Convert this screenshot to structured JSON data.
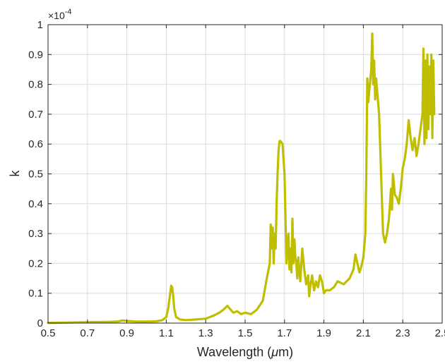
{
  "chart_data": {
    "type": "line",
    "title": "",
    "xlabel_prefix": "Wavelength (",
    "xlabel_unit": "μ",
    "xlabel_suffix": "m)",
    "ylabel": "k",
    "y_multiplier_base": "×10",
    "y_multiplier_exp": "-4",
    "xlim": [
      0.5,
      2.5
    ],
    "ylim": [
      0,
      1
    ],
    "xticks": [
      "0.5",
      "0.7",
      "0.9",
      "1.1",
      "1.3",
      "1.5",
      "1.7",
      "1.9",
      "2.1",
      "2.3",
      "2.5"
    ],
    "yticks": [
      "0",
      "0.1",
      "0.2",
      "0.3",
      "0.4",
      "0.5",
      "0.6",
      "0.7",
      "0.8",
      "0.9",
      "1"
    ],
    "grid": true,
    "line_color": "#bfbf00",
    "series": [
      {
        "x": [
          0.5,
          0.6,
          0.7,
          0.8,
          0.85,
          0.88,
          0.9,
          0.95,
          1.0,
          1.05,
          1.08,
          1.1,
          1.11,
          1.12,
          1.125,
          1.13,
          1.135,
          1.14,
          1.15,
          1.17,
          1.2,
          1.25,
          1.3,
          1.34,
          1.37,
          1.39,
          1.41,
          1.42,
          1.44,
          1.46,
          1.48,
          1.5,
          1.53,
          1.56,
          1.59,
          1.61,
          1.625,
          1.63,
          1.635,
          1.64,
          1.645,
          1.65,
          1.655,
          1.66,
          1.665,
          1.67,
          1.675,
          1.68,
          1.69,
          1.7,
          1.71,
          1.72,
          1.725,
          1.73,
          1.735,
          1.74,
          1.745,
          1.75,
          1.755,
          1.76,
          1.765,
          1.77,
          1.78,
          1.79,
          1.8,
          1.81,
          1.82,
          1.825,
          1.83,
          1.84,
          1.85,
          1.86,
          1.87,
          1.88,
          1.89,
          1.9,
          1.91,
          1.93,
          1.95,
          1.97,
          2.0,
          2.03,
          2.05,
          2.06,
          2.07,
          2.08,
          2.09,
          2.1,
          2.11,
          2.115,
          2.12,
          2.125,
          2.13,
          2.14,
          2.145,
          2.15,
          2.155,
          2.16,
          2.165,
          2.17,
          2.18,
          2.19,
          2.2,
          2.21,
          2.22,
          2.23,
          2.24,
          2.245,
          2.25,
          2.26,
          2.27,
          2.28,
          2.29,
          2.3,
          2.31,
          2.32,
          2.33,
          2.34,
          2.35,
          2.36,
          2.37,
          2.38,
          2.39,
          2.4,
          2.405,
          2.41,
          2.415,
          2.42,
          2.425,
          2.43,
          2.435,
          2.44,
          2.445,
          2.45,
          2.455,
          2.46
        ],
        "y": [
          0.001,
          0.002,
          0.003,
          0.004,
          0.005,
          0.009,
          0.007,
          0.005,
          0.005,
          0.006,
          0.01,
          0.02,
          0.05,
          0.1,
          0.125,
          0.12,
          0.09,
          0.05,
          0.02,
          0.012,
          0.01,
          0.012,
          0.015,
          0.025,
          0.035,
          0.045,
          0.058,
          0.05,
          0.035,
          0.04,
          0.03,
          0.035,
          0.03,
          0.045,
          0.075,
          0.15,
          0.2,
          0.33,
          0.25,
          0.32,
          0.2,
          0.3,
          0.25,
          0.4,
          0.5,
          0.58,
          0.61,
          0.61,
          0.6,
          0.5,
          0.2,
          0.3,
          0.18,
          0.25,
          0.17,
          0.35,
          0.2,
          0.28,
          0.22,
          0.2,
          0.15,
          0.22,
          0.14,
          0.25,
          0.18,
          0.13,
          0.16,
          0.09,
          0.12,
          0.16,
          0.11,
          0.14,
          0.12,
          0.16,
          0.14,
          0.1,
          0.11,
          0.11,
          0.12,
          0.14,
          0.13,
          0.15,
          0.18,
          0.23,
          0.2,
          0.17,
          0.19,
          0.22,
          0.3,
          0.5,
          0.82,
          0.74,
          0.78,
          0.85,
          0.97,
          0.8,
          0.88,
          0.75,
          0.82,
          0.78,
          0.7,
          0.5,
          0.3,
          0.27,
          0.3,
          0.35,
          0.45,
          0.38,
          0.5,
          0.43,
          0.42,
          0.4,
          0.45,
          0.52,
          0.55,
          0.6,
          0.68,
          0.62,
          0.58,
          0.62,
          0.56,
          0.6,
          0.65,
          0.7,
          0.92,
          0.6,
          0.88,
          0.62,
          0.9,
          0.65,
          0.86,
          0.7,
          0.9,
          0.62,
          0.88,
          0.7
        ]
      }
    ]
  }
}
